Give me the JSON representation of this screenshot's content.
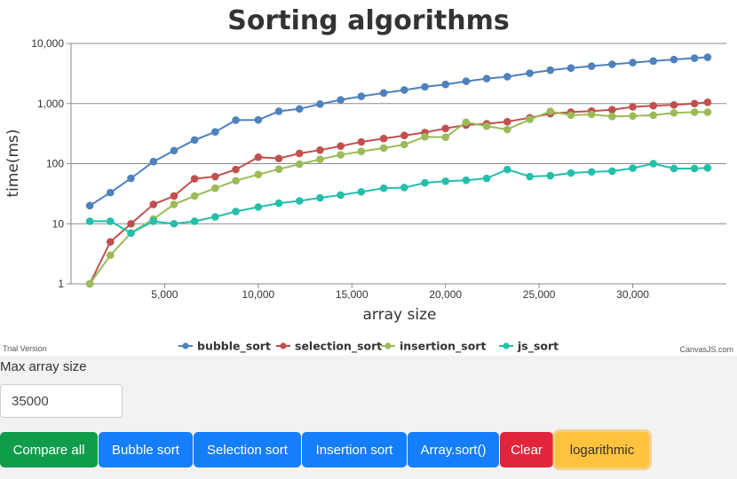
{
  "chart_data": {
    "type": "line",
    "title": "Sorting algorithms",
    "xlabel": "array size",
    "ylabel": "time(ms)",
    "y_scale": "log",
    "xlim": [
      0,
      35000
    ],
    "ylim": [
      1,
      10000
    ],
    "x_ticks": [
      5000,
      10000,
      15000,
      20000,
      25000,
      30000
    ],
    "x_tick_labels": [
      "5,000",
      "10,000",
      "15,000",
      "20,000",
      "25,000",
      "30,000"
    ],
    "y_ticks": [
      1,
      10,
      100,
      1000,
      10000
    ],
    "y_tick_labels": [
      "1",
      "10",
      "100",
      "1,000",
      "10,000"
    ],
    "grid": true,
    "legend_position": "bottom-center",
    "x": [
      1000,
      2100,
      3200,
      4400,
      5500,
      6600,
      7700,
      8800,
      10000,
      11100,
      12200,
      13300,
      14400,
      15500,
      16700,
      17800,
      18900,
      20000,
      21100,
      22200,
      23300,
      24500,
      25600,
      26700,
      27800,
      28900,
      30000,
      31100,
      32200,
      33300,
      34000
    ],
    "series": [
      {
        "name": "bubble_sort",
        "color": "#4f81bc",
        "values": [
          20,
          33,
          57,
          108,
          165,
          248,
          338,
          530,
          535,
          745,
          815,
          980,
          1150,
          1320,
          1500,
          1680,
          1900,
          2080,
          2350,
          2600,
          2800,
          3200,
          3600,
          3900,
          4200,
          4500,
          4800,
          5100,
          5400,
          5700,
          5900
        ]
      },
      {
        "name": "selection_sort",
        "color": "#c0504e",
        "values": [
          1,
          5,
          10,
          21,
          29,
          56,
          61,
          80,
          128,
          122,
          148,
          168,
          196,
          230,
          262,
          295,
          330,
          385,
          440,
          460,
          500,
          580,
          680,
          720,
          750,
          790,
          880,
          920,
          950,
          1000,
          1050
        ]
      },
      {
        "name": "insertion_sort",
        "color": "#9bbb58",
        "values": [
          1,
          3,
          7,
          12,
          21,
          29,
          39,
          52,
          66,
          81,
          98,
          118,
          140,
          160,
          182,
          208,
          280,
          275,
          490,
          420,
          370,
          545,
          740,
          640,
          660,
          610,
          620,
          640,
          700,
          720,
          720
        ]
      },
      {
        "name": "js_sort",
        "color": "#23bfaa",
        "values": [
          11,
          11,
          7,
          11,
          10,
          11,
          13,
          16,
          19,
          22,
          24,
          27,
          30,
          34,
          39,
          40,
          48,
          51,
          53,
          57,
          80,
          61,
          63,
          70,
          73,
          75,
          84,
          100,
          83,
          83,
          85
        ]
      }
    ]
  },
  "watermark": {
    "trial": "Trial Version",
    "brand": "CanvasJS.com"
  },
  "controls": {
    "size_label": "Max array size",
    "size_value": "35000",
    "buttons": {
      "compare": "Compare all",
      "bubble": "Bubble sort",
      "selection": "Selection sort",
      "insertion": "Insertion sort",
      "array_sort": "Array.sort()",
      "clear": "Clear",
      "logarithmic": "logarithmic"
    }
  }
}
